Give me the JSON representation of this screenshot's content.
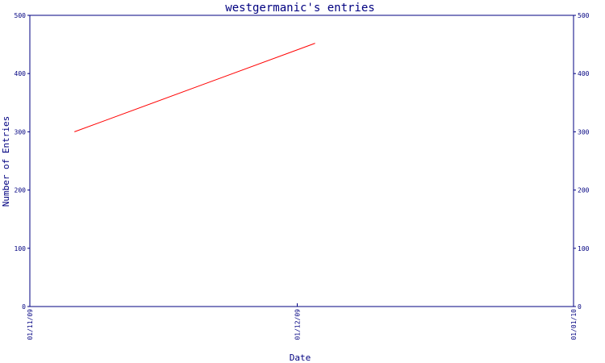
{
  "chart_data": {
    "type": "line",
    "title": "westgermanic's entries",
    "xlabel": "Date",
    "ylabel": "Number of Entries",
    "x_ticks": [
      "01/11/09",
      "01/12/09",
      "01/01/10"
    ],
    "y_ticks": [
      0,
      100,
      200,
      300,
      400,
      500
    ],
    "ylim": [
      0,
      500
    ],
    "xlim": [
      "2009-11-01",
      "2010-01-01"
    ],
    "grid": false,
    "series": [
      {
        "color": "#ff0000",
        "points": [
          {
            "x": "2009-11-06",
            "y": 300
          },
          {
            "x": "2009-12-03",
            "y": 452
          }
        ]
      }
    ],
    "colors": {
      "axis": "#000080",
      "line": "#ff0000"
    }
  }
}
